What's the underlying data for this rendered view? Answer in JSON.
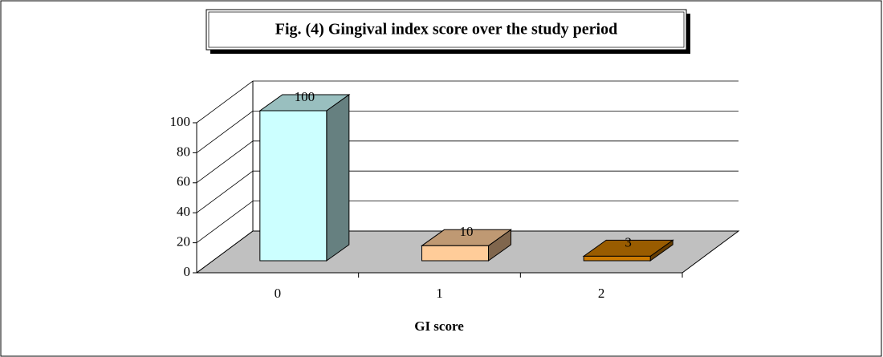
{
  "chart_data": {
    "type": "bar",
    "title": "Fig. (4) Gingival index score over the study period",
    "categories": [
      "0",
      "1",
      "2"
    ],
    "values": [
      100,
      10,
      3
    ],
    "colors": [
      "#ccffff",
      "#ffcc99",
      "#cc7a00"
    ],
    "xlabel": "GI score",
    "ylim": [
      0,
      100
    ],
    "yticks": [
      0,
      20,
      40,
      60,
      80,
      100
    ],
    "grid": true
  }
}
